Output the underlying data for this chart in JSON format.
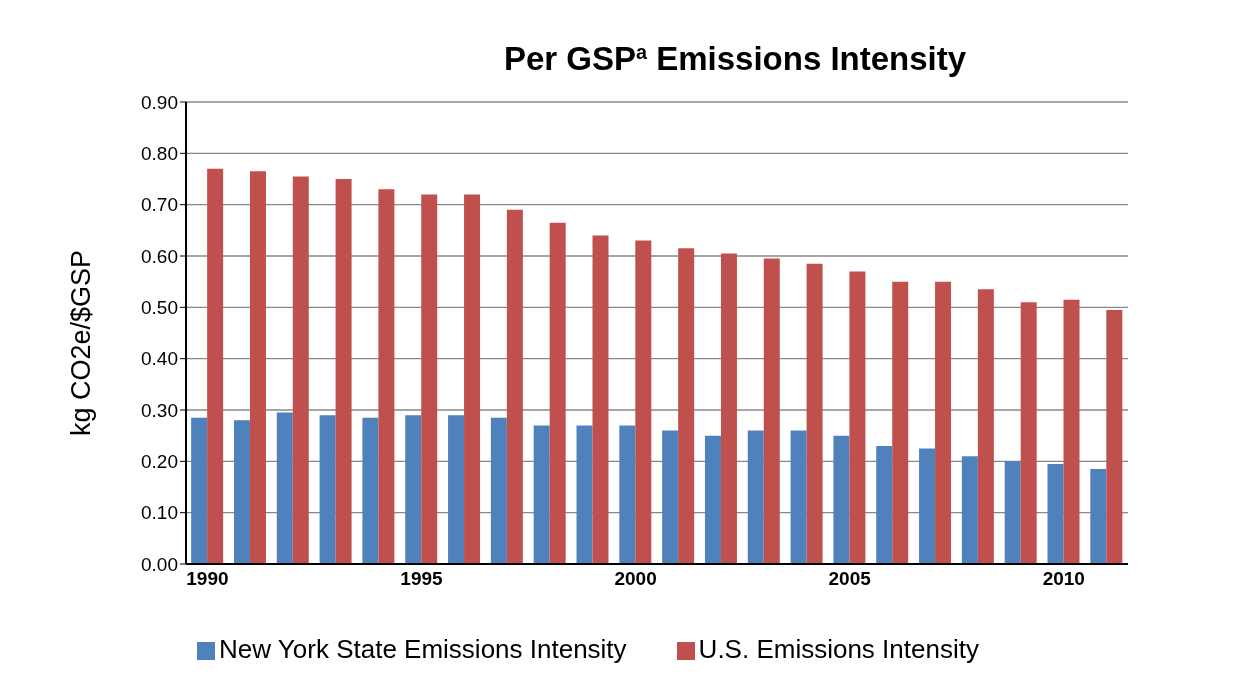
{
  "chart_data": {
    "type": "bar",
    "title": "Per GSP$^{a}$ Emissions Intensity",
    "ylabel": "kg CO2e/$GSP",
    "categories": [
      "1990",
      null,
      null,
      null,
      null,
      "1995",
      null,
      null,
      null,
      null,
      "2000",
      null,
      null,
      null,
      null,
      "2005",
      null,
      null,
      null,
      null,
      "2010",
      null
    ],
    "series": [
      {
        "name": "New York State Emissions Intensity",
        "color": "#4f81bd",
        "values": [
          0.285,
          0.28,
          0.295,
          0.29,
          0.285,
          0.29,
          0.29,
          0.285,
          0.27,
          0.27,
          0.27,
          0.26,
          0.25,
          0.26,
          0.26,
          0.25,
          0.23,
          0.225,
          0.21,
          0.2,
          0.195,
          0.185
        ]
      },
      {
        "name": "U.S. Emissions Intensity",
        "color": "#c0504d",
        "values": [
          0.77,
          0.765,
          0.755,
          0.75,
          0.73,
          0.72,
          0.72,
          0.69,
          0.665,
          0.64,
          0.63,
          0.615,
          0.605,
          0.595,
          0.585,
          0.57,
          0.55,
          0.55,
          0.535,
          0.51,
          0.515,
          0.495
        ]
      }
    ],
    "ylim": [
      0,
      0.9
    ],
    "yticks": [
      {
        "value": 0,
        "label": "0.00"
      },
      {
        "value": 0.1,
        "label": "0.10"
      },
      {
        "value": 0.2,
        "label": "0.20"
      },
      {
        "value": 0.3,
        "label": "0.30"
      },
      {
        "value": 0.4,
        "label": "0.40"
      },
      {
        "value": 0.5,
        "label": "0.50"
      },
      {
        "value": 0.6,
        "label": "0.60"
      },
      {
        "value": 0.7,
        "label": "0.70"
      },
      {
        "value": 0.8,
        "label": "0.80"
      },
      {
        "value": 0.9,
        "label": "0.90"
      }
    ],
    "grid": "y",
    "legend": "bottom"
  }
}
